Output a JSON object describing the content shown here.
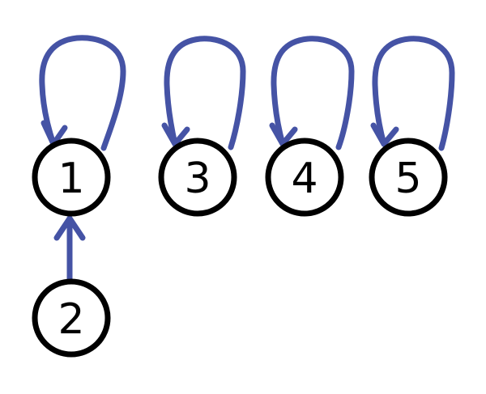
{
  "diagram": {
    "nodes": [
      {
        "id": "1",
        "label": "1"
      },
      {
        "id": "3",
        "label": "3"
      },
      {
        "id": "4",
        "label": "4"
      },
      {
        "id": "5",
        "label": "5"
      },
      {
        "id": "2",
        "label": "2"
      }
    ],
    "edges": [
      {
        "from": "1",
        "to": "1",
        "kind": "self-loop"
      },
      {
        "from": "3",
        "to": "3",
        "kind": "self-loop"
      },
      {
        "from": "4",
        "to": "4",
        "kind": "self-loop"
      },
      {
        "from": "5",
        "to": "5",
        "kind": "self-loop"
      },
      {
        "from": "2",
        "to": "1",
        "kind": "directed"
      }
    ],
    "colors": {
      "edge": "#4553a5",
      "node_stroke": "#000000"
    }
  }
}
